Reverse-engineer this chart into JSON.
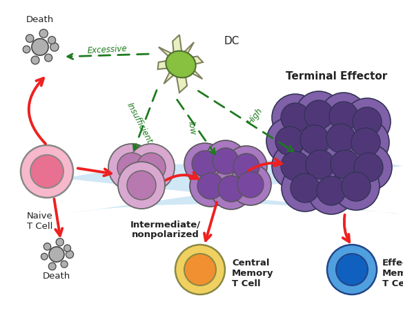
{
  "bg_color": "#ffffff",
  "dc_label": "DC",
  "naive_label": "Naive\nT Cell",
  "death_top_label": "Death",
  "death_bot_label": "Death",
  "terminal_label": "Terminal Effector",
  "central_label": "Central\nMemory\nT Cell",
  "effector_label": "Effector\nMemory\nT Cell",
  "intermediate_label": "Intermediate/\nnonpolarized",
  "label_insufficient": "Insufficient",
  "label_low": "low",
  "label_high": "High",
  "label_excessive": "Excessive",
  "red": "#ee2020",
  "green": "#1e7a1e",
  "ribbon_color": "#aad4f0"
}
